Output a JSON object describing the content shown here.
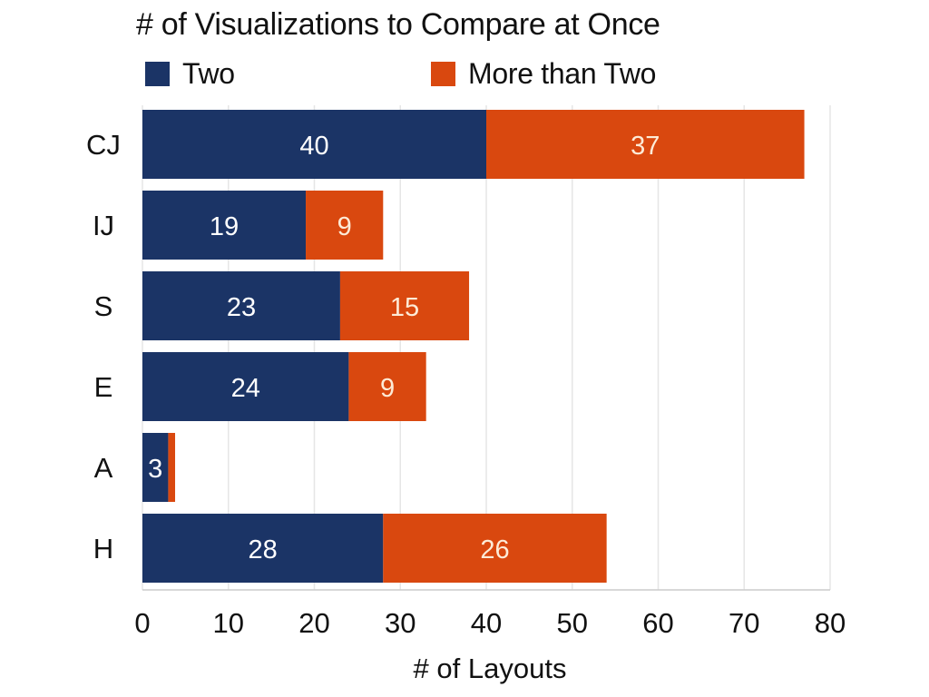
{
  "colors": {
    "two": "#1b3466",
    "more_than_two": "#d9480f",
    "grid": "#e6e6e6",
    "axis": "#cccccc",
    "text": "#111111",
    "bar_label": "#ffffff",
    "bar_label_orange": "#fdebd7"
  },
  "chart_data": {
    "type": "bar",
    "orientation": "horizontal",
    "stacked": true,
    "title": "# of Visualizations to Compare at Once",
    "xlabel": "# of Layouts",
    "ylabel": "",
    "xlim": [
      0,
      80
    ],
    "x_ticks": [
      0,
      10,
      20,
      30,
      40,
      50,
      60,
      70,
      80
    ],
    "grid": true,
    "legend_position": "top",
    "categories": [
      "CJ",
      "IJ",
      "S",
      "E",
      "A",
      "H"
    ],
    "series": [
      {
        "name": "Two",
        "values": [
          40,
          19,
          23,
          24,
          3,
          28
        ],
        "value_labels": [
          "40",
          "19",
          "23",
          "24",
          "3",
          "28"
        ]
      },
      {
        "name": "More than Two",
        "values": [
          37,
          9,
          15,
          9,
          0.8,
          26
        ],
        "value_labels": [
          "37",
          "9",
          "15",
          "9",
          "",
          "26"
        ]
      }
    ]
  }
}
